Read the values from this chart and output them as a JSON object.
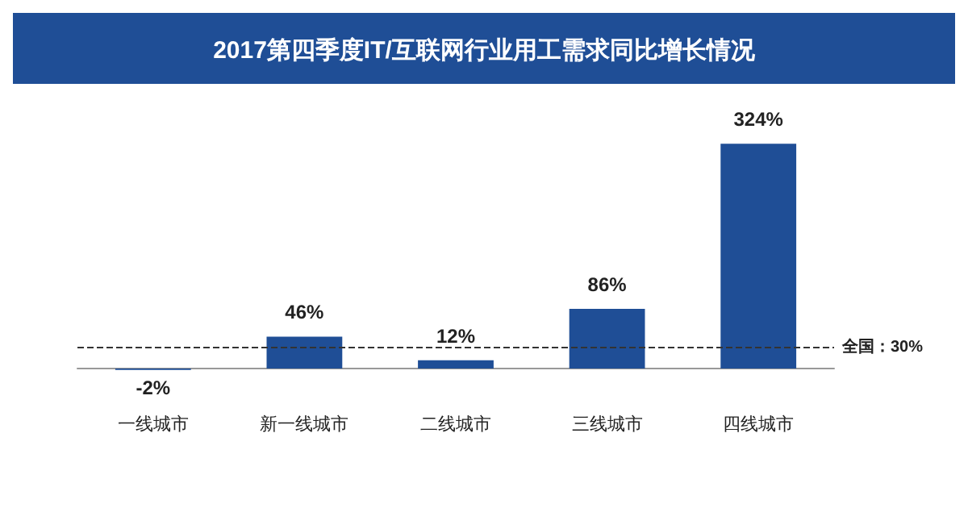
{
  "chart_data": {
    "type": "bar",
    "title": "2017第四季度IT/互联网行业用工需求同比增长情况",
    "categories": [
      "一线城市",
      "新一线城市",
      "二线城市",
      "三线城市",
      "四线城市"
    ],
    "values": [
      -2,
      46,
      12,
      86,
      324
    ],
    "value_labels": [
      "-2%",
      "46%",
      "12%",
      "86%",
      "324%"
    ],
    "color": "#1f4e96",
    "ref_lines": [
      {
        "axis": "y",
        "value": 30,
        "label": "全国：30%",
        "color": "#333333",
        "line_style": "dashed"
      }
    ],
    "tick_labels": "x"
  }
}
